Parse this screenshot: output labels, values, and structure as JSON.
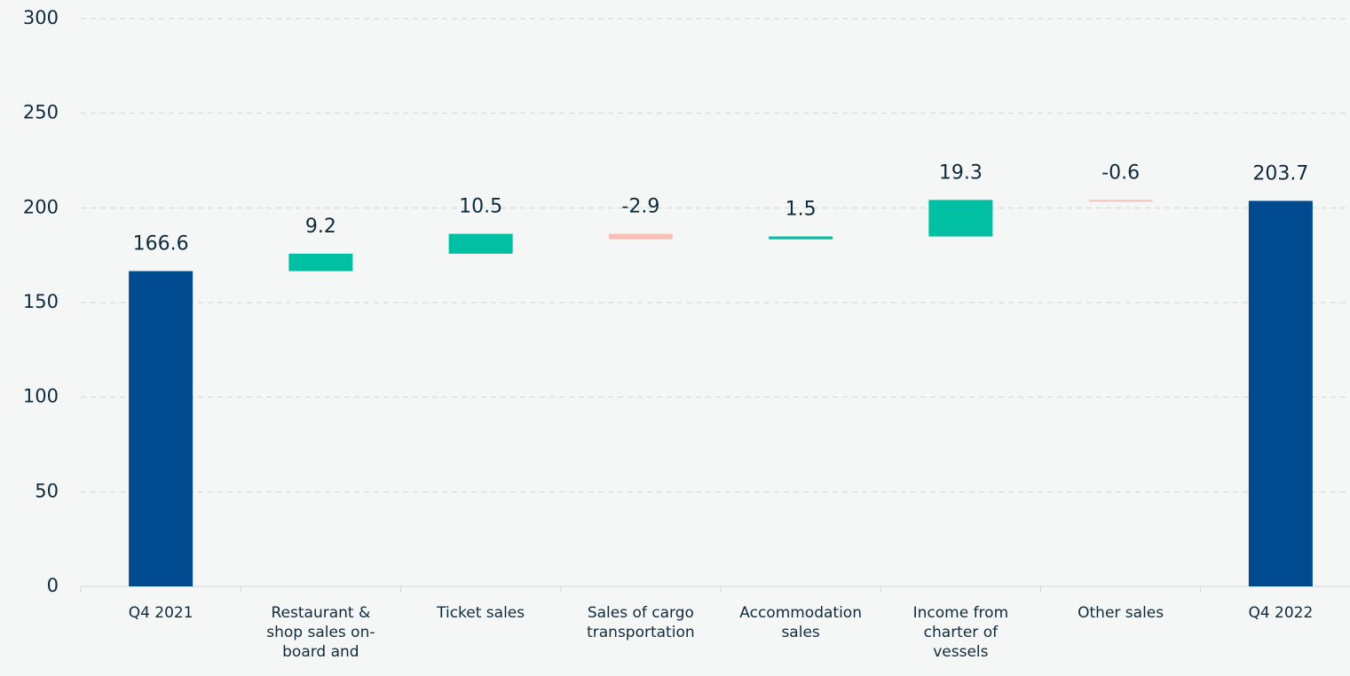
{
  "chart_data": {
    "type": "waterfall",
    "categories": [
      [
        "Q4 2021"
      ],
      [
        "Restaurant &",
        "shop sales on-",
        "board and"
      ],
      [
        "Ticket sales"
      ],
      [
        "Sales of cargo",
        "transportation"
      ],
      [
        "Accommodation",
        "sales"
      ],
      [
        "Income from",
        "charter of",
        "vessels"
      ],
      [
        "Other sales"
      ],
      [
        "Q4 2022"
      ]
    ],
    "values": [
      166.6,
      9.2,
      10.5,
      -2.9,
      1.5,
      19.3,
      -0.6,
      203.7
    ],
    "is_total": [
      true,
      false,
      false,
      false,
      false,
      false,
      false,
      true
    ],
    "total_color": "#004a90",
    "increase_color": "#00bfa2",
    "decrease_color": "#f9c1b5",
    "ylim": [
      0,
      300
    ],
    "yticks": [
      0,
      50,
      100,
      150,
      200,
      250,
      300
    ],
    "grid": true
  }
}
